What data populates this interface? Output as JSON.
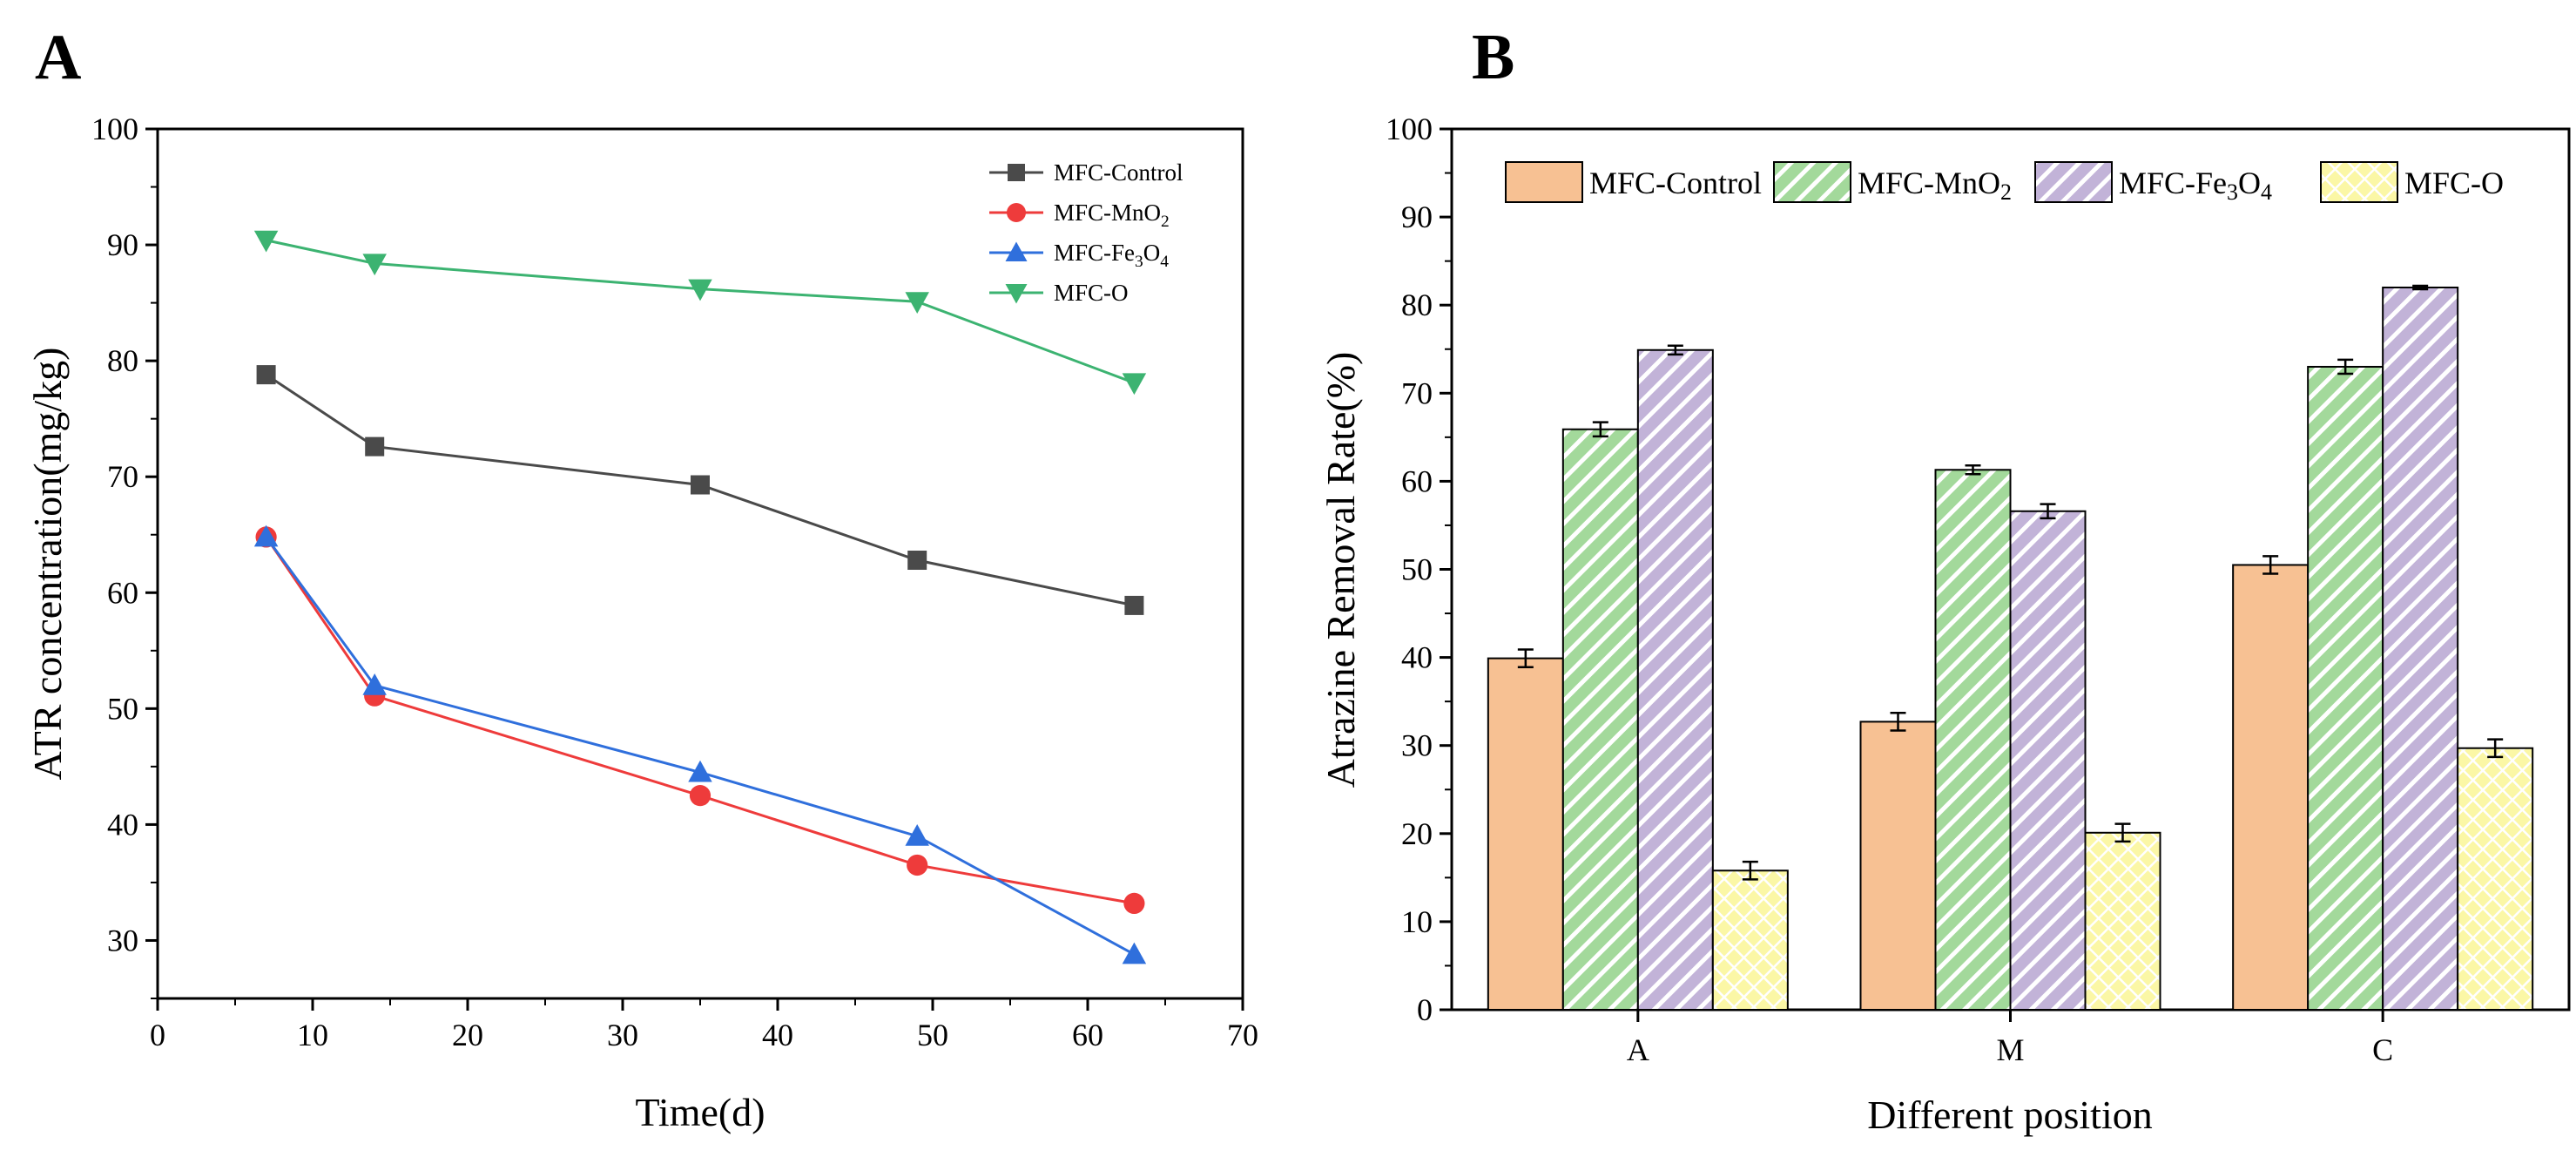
{
  "chart_data": [
    {
      "panel_label": "A",
      "type": "line",
      "title": "",
      "xlabel": "Time(d)",
      "ylabel": "ATR concentration(mg/kg)",
      "xlim": [
        0,
        70
      ],
      "ylim": [
        25,
        100
      ],
      "xticks": [
        0,
        10,
        20,
        30,
        40,
        50,
        60,
        70
      ],
      "yticks": [
        30,
        40,
        50,
        60,
        70,
        80,
        90,
        100
      ],
      "x": [
        7,
        14,
        35,
        49,
        63
      ],
      "legend_position": "top-right",
      "series": [
        {
          "name": "MFC-Control",
          "name_parts": [
            "MFC-Control"
          ],
          "marker": "square",
          "color": "#4a4a4a",
          "values": [
            78.8,
            72.6,
            69.3,
            62.8,
            58.9
          ]
        },
        {
          "name": "MFC-MnO2",
          "name_parts": [
            "MFC-MnO",
            "2",
            ""
          ],
          "marker": "circle",
          "color": "#ee3b3b",
          "values": [
            64.8,
            51.1,
            42.5,
            36.5,
            33.2
          ]
        },
        {
          "name": "MFC-Fe3O4",
          "name_parts": [
            "MFC-Fe",
            "3",
            "O",
            "4"
          ],
          "marker": "triangle-up",
          "color": "#2f6fdc",
          "values": [
            64.8,
            52.0,
            44.5,
            39.0,
            28.8
          ]
        },
        {
          "name": "MFC-O",
          "name_parts": [
            "MFC-O"
          ],
          "marker": "triangle-down",
          "color": "#3cb371",
          "values": [
            90.4,
            88.4,
            86.2,
            85.1,
            78.1
          ]
        }
      ]
    },
    {
      "panel_label": "B",
      "type": "bar",
      "title": "",
      "xlabel": "Different position",
      "ylabel": "Atrazine Removal Rate(%)",
      "ylim": [
        0,
        100
      ],
      "yticks": [
        0,
        10,
        20,
        30,
        40,
        50,
        60,
        70,
        80,
        90,
        100
      ],
      "categories": [
        "A",
        "M",
        "C"
      ],
      "legend_position": "top",
      "series": [
        {
          "name": "MFC-Control",
          "name_parts": [
            "MFC-Control"
          ],
          "color": "#f7c193",
          "pattern": "solid",
          "values": [
            39.9,
            32.7,
            50.5
          ],
          "errors": [
            1.0,
            1.0,
            1.0
          ]
        },
        {
          "name": "MFC-MnO2",
          "name_parts": [
            "MFC-MnO",
            "2",
            ""
          ],
          "color": "#a3d99b",
          "pattern": "diagonal-hatch",
          "values": [
            65.9,
            61.3,
            73.0
          ],
          "errors": [
            0.8,
            0.5,
            0.8
          ]
        },
        {
          "name": "MFC-Fe3O4",
          "name_parts": [
            "MFC-Fe",
            "3",
            "O",
            "4"
          ],
          "color": "#c2b3d8",
          "pattern": "diagonal-hatch",
          "values": [
            74.9,
            56.6,
            82.0
          ],
          "errors": [
            0.5,
            0.8,
            0.2
          ]
        },
        {
          "name": "MFC-O",
          "name_parts": [
            "MFC-O"
          ],
          "color": "#fbf7a6",
          "pattern": "cross-hatch",
          "values": [
            15.8,
            20.1,
            29.7
          ],
          "errors": [
            1.0,
            1.0,
            1.0
          ]
        }
      ]
    }
  ]
}
